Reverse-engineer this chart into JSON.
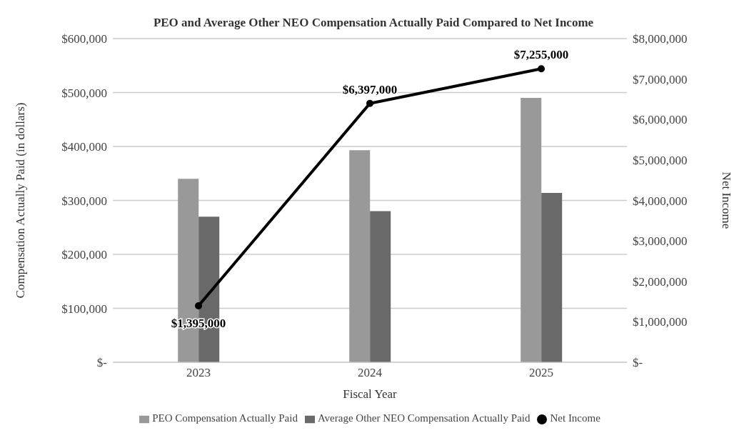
{
  "chart_data": {
    "type": "bar",
    "title": "PEO and Average Other NEO Compensation Actually Paid Compared to Net Income",
    "xlabel": "Fiscal Year",
    "ylabel": "Compensation Actually Paid (in dollars)",
    "y2label": "Net Income",
    "categories": [
      "2023",
      "2024",
      "2025"
    ],
    "series": [
      {
        "name": "PEO Compensation Actually Paid",
        "color": "#999999",
        "values": [
          340000,
          393000,
          490000
        ]
      },
      {
        "name": "Average Other NEO Compensation Actually Paid",
        "color": "#696969",
        "values": [
          270000,
          280000,
          314000
        ]
      },
      {
        "name": "Net Income",
        "type": "line",
        "axis": "y2",
        "color": "#000000",
        "values": [
          1395000,
          6397000,
          7255000
        ],
        "value_labels": [
          "$1,395,000",
          "$6,397,000",
          "$7,255,000"
        ]
      }
    ],
    "ylim": [
      0,
      600000
    ],
    "yticks": [
      {
        "value": 0,
        "label": "$-"
      },
      {
        "value": 100000,
        "label": "$100,000"
      },
      {
        "value": 200000,
        "label": "$200,000"
      },
      {
        "value": 300000,
        "label": "$300,000"
      },
      {
        "value": 400000,
        "label": "$400,000"
      },
      {
        "value": 500000,
        "label": "$500,000"
      },
      {
        "value": 600000,
        "label": "$600,000"
      }
    ],
    "y2lim": [
      0,
      8000000
    ],
    "y2ticks": [
      {
        "value": 0,
        "label": "$-"
      },
      {
        "value": 1000000,
        "label": "$1,000,000"
      },
      {
        "value": 2000000,
        "label": "$2,000,000"
      },
      {
        "value": 3000000,
        "label": "$3,000,000"
      },
      {
        "value": 4000000,
        "label": "$4,000,000"
      },
      {
        "value": 5000000,
        "label": "$5,000,000"
      },
      {
        "value": 6000000,
        "label": "$6,000,000"
      },
      {
        "value": 7000000,
        "label": "$7,000,000"
      },
      {
        "value": 8000000,
        "label": "$8,000,000"
      }
    ],
    "grid": "y",
    "legend": "bottom",
    "marker": "circle"
  }
}
